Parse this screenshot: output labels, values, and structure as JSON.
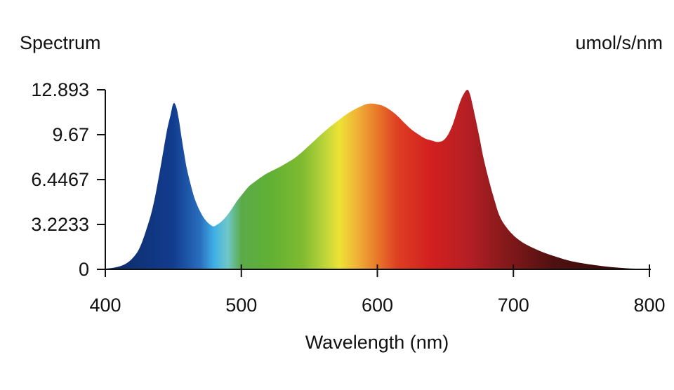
{
  "chart_data": {
    "type": "area",
    "title": "Spectrum",
    "unit_label": "umol/s/nm",
    "xlabel": "Wavelength (nm)",
    "xlim": [
      400,
      800
    ],
    "ylim": [
      0,
      12.893
    ],
    "xticks": [
      {
        "value": 400,
        "label": "400"
      },
      {
        "value": 500,
        "label": "500"
      },
      {
        "value": 600,
        "label": "600"
      },
      {
        "value": 700,
        "label": "700"
      },
      {
        "value": 800,
        "label": "800"
      }
    ],
    "yticks": [
      {
        "value": 0,
        "label": "0"
      },
      {
        "value": 3.2233,
        "label": "3.2233"
      },
      {
        "value": 6.4467,
        "label": "6.4467"
      },
      {
        "value": 9.67,
        "label": "9.67"
      },
      {
        "value": 12.893,
        "label": "12.893"
      }
    ],
    "grid": false,
    "x": [
      400,
      405,
      410,
      415,
      420,
      425,
      430,
      435,
      440,
      445,
      448,
      450,
      452,
      454,
      456,
      458,
      460,
      463,
      466,
      470,
      474,
      478,
      480,
      482,
      485,
      488,
      492,
      496,
      500,
      505,
      510,
      515,
      520,
      530,
      540,
      550,
      560,
      570,
      580,
      590,
      595,
      600,
      605,
      610,
      615,
      620,
      625,
      630,
      635,
      640,
      645,
      650,
      655,
      660,
      663,
      666,
      668,
      670,
      672,
      675,
      678,
      682,
      686,
      690,
      695,
      700,
      705,
      710,
      720,
      730,
      740,
      750,
      760,
      770,
      780,
      790,
      800
    ],
    "y": [
      0.05,
      0.1,
      0.2,
      0.4,
      0.8,
      1.5,
      2.8,
      4.5,
      7.0,
      9.8,
      11.1,
      11.9,
      11.7,
      10.8,
      9.5,
      8.3,
      7.2,
      6.0,
      5.0,
      4.1,
      3.5,
      3.15,
      3.1,
      3.2,
      3.4,
      3.7,
      4.2,
      4.8,
      5.3,
      5.9,
      6.3,
      6.65,
      6.95,
      7.45,
      8.05,
      8.9,
      9.8,
      10.6,
      11.3,
      11.8,
      11.9,
      11.85,
      11.7,
      11.4,
      11.0,
      10.5,
      10.05,
      9.7,
      9.4,
      9.25,
      9.15,
      9.4,
      10.3,
      11.8,
      12.5,
      12.893,
      12.6,
      11.8,
      10.9,
      9.5,
      8.0,
      6.4,
      5.0,
      3.8,
      3.0,
      2.45,
      2.05,
      1.75,
      1.3,
      0.95,
      0.65,
      0.45,
      0.3,
      0.18,
      0.1,
      0.05,
      0.03
    ],
    "gradient_stops": [
      {
        "x": 400,
        "color": "#0d2a63"
      },
      {
        "x": 450,
        "color": "#123c8f"
      },
      {
        "x": 470,
        "color": "#2a6fbf"
      },
      {
        "x": 480,
        "color": "#3fb0e6"
      },
      {
        "x": 490,
        "color": "#6fc8c8"
      },
      {
        "x": 500,
        "color": "#5aaa4a"
      },
      {
        "x": 520,
        "color": "#60b035"
      },
      {
        "x": 545,
        "color": "#7fbb30"
      },
      {
        "x": 560,
        "color": "#b7d23a"
      },
      {
        "x": 572,
        "color": "#ede335"
      },
      {
        "x": 585,
        "color": "#f0b237"
      },
      {
        "x": 598,
        "color": "#e9802b"
      },
      {
        "x": 615,
        "color": "#de3e22"
      },
      {
        "x": 640,
        "color": "#d21f1f"
      },
      {
        "x": 665,
        "color": "#b71f24"
      },
      {
        "x": 690,
        "color": "#8c1a1c"
      },
      {
        "x": 730,
        "color": "#4f1010"
      },
      {
        "x": 800,
        "color": "#2a0808"
      }
    ]
  }
}
